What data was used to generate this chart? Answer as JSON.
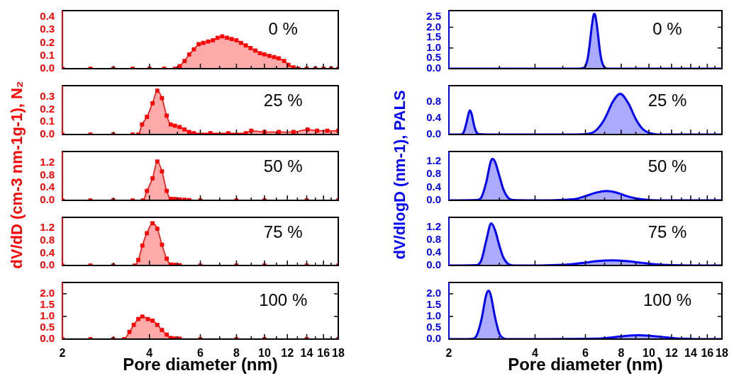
{
  "chart_data": [
    {
      "type": "area",
      "color": "#ff0000",
      "marker": "square",
      "log": "x",
      "xlim": [
        2,
        18
      ],
      "xticks": [
        2,
        {
          "value": 3,
          "label": null
        },
        4,
        {
          "value": 5,
          "label": null
        },
        6,
        {
          "value": 7,
          "label": null
        },
        8,
        {
          "value": 9,
          "label": null
        },
        10,
        {
          "value": 11,
          "label": null
        },
        12,
        {
          "value": 13,
          "label": null
        },
        14,
        {
          "value": 15,
          "label": null
        },
        16,
        {
          "value": 17,
          "label": null
        },
        18
      ],
      "tick_labels": "y",
      "ylim": [
        0,
        0.45
      ],
      "yticks": [
        {
          "value": 0,
          "label": "0.0"
        },
        0.1,
        0.2,
        0.3,
        0.4
      ],
      "annotations": [
        "0 %"
      ],
      "x": [
        2,
        2.5,
        3,
        3.5,
        4,
        4.5,
        4.9,
        5.09,
        5.29,
        5.49,
        5.7,
        5.92,
        6.14,
        6.38,
        6.63,
        6.88,
        7.14,
        7.42,
        7.7,
        8.0,
        8.3,
        8.62,
        8.95,
        9.3,
        9.65,
        10.0,
        10.4,
        10.8,
        11.2,
        11.7,
        12.1,
        12.6,
        13.1,
        14,
        15,
        16,
        17,
        18
      ],
      "values": [
        0,
        0,
        0,
        0,
        0,
        0,
        0,
        0.02,
        0.06,
        0.11,
        0.15,
        0.19,
        0.2,
        0.21,
        0.22,
        0.24,
        0.25,
        0.24,
        0.23,
        0.22,
        0.2,
        0.18,
        0.16,
        0.14,
        0.12,
        0.11,
        0.1,
        0.09,
        0.08,
        0.06,
        0.03,
        0.01,
        0,
        0,
        0,
        0,
        0,
        0
      ]
    },
    {
      "type": "area",
      "color": "#ff0000",
      "marker": "square",
      "log": "x",
      "xlim": [
        2,
        18
      ],
      "xticks": [
        2,
        {
          "value": 3,
          "label": null
        },
        4,
        {
          "value": 5,
          "label": null
        },
        6,
        {
          "value": 7,
          "label": null
        },
        8,
        {
          "value": 9,
          "label": null
        },
        10,
        {
          "value": 11,
          "label": null
        },
        12,
        {
          "value": 13,
          "label": null
        },
        14,
        {
          "value": 15,
          "label": null
        },
        16,
        {
          "value": 17,
          "label": null
        },
        18
      ],
      "tick_labels": "y",
      "ylim": [
        0,
        0.39
      ],
      "yticks": [
        {
          "value": 0,
          "label": "0.0"
        },
        0.1,
        0.2,
        0.3
      ],
      "annotations": [
        "25 %"
      ],
      "x": [
        2,
        2.5,
        3,
        3.5,
        3.66,
        3.77,
        3.92,
        4.1,
        4.26,
        4.42,
        4.59,
        4.74,
        4.9,
        5.09,
        5.29,
        5.49,
        5.7,
        6.5,
        7.5,
        8.62,
        9.0,
        10.0,
        11.2,
        12.6,
        14.1,
        15.2,
        16.5,
        18
      ],
      "values": [
        0,
        0,
        0,
        0,
        0,
        0.08,
        0.14,
        0.25,
        0.35,
        0.29,
        0.15,
        0.08,
        0.07,
        0.06,
        0.04,
        0.02,
        0.01,
        0.01,
        0.01,
        0.01,
        0.03,
        0.02,
        0.02,
        0.02,
        0.04,
        0.03,
        0.03,
        0.03
      ]
    },
    {
      "type": "area",
      "color": "#ff0000",
      "marker": "square",
      "log": "x",
      "xlim": [
        2,
        18
      ],
      "xticks": [
        2,
        {
          "value": 3,
          "label": null
        },
        4,
        {
          "value": 5,
          "label": null
        },
        6,
        {
          "value": 7,
          "label": null
        },
        8,
        {
          "value": 9,
          "label": null
        },
        10,
        {
          "value": 11,
          "label": null
        },
        12,
        {
          "value": 13,
          "label": null
        },
        14,
        {
          "value": 15,
          "label": null
        },
        16,
        {
          "value": 17,
          "label": null
        },
        18
      ],
      "tick_labels": "y",
      "ylim": [
        0,
        1.55
      ],
      "yticks": [
        {
          "value": 0,
          "label": "0.0"
        },
        0.4,
        0.8,
        1.2
      ],
      "annotations": [
        "50 %"
      ],
      "ylabel": "dV/dD (cm-3 nm-1g-1), N₂",
      "x": [
        2,
        2.5,
        3,
        3.5,
        3.8,
        3.92,
        4.1,
        4.26,
        4.42,
        4.59,
        4.74,
        4.9,
        5.09,
        5.29,
        5.49,
        6,
        8,
        10,
        14,
        18
      ],
      "values": [
        0,
        0,
        0,
        0,
        0,
        0.3,
        0.7,
        1.23,
        0.92,
        0.3,
        0.05,
        0.04,
        0.03,
        0.02,
        0.01,
        0,
        0,
        0,
        0,
        0
      ]
    },
    {
      "type": "area",
      "color": "#ff0000",
      "marker": "square",
      "log": "x",
      "xlim": [
        2,
        18
      ],
      "xticks": [
        2,
        {
          "value": 3,
          "label": null
        },
        4,
        {
          "value": 5,
          "label": null
        },
        6,
        {
          "value": 7,
          "label": null
        },
        8,
        {
          "value": 9,
          "label": null
        },
        10,
        {
          "value": 11,
          "label": null
        },
        12,
        {
          "value": 13,
          "label": null
        },
        14,
        {
          "value": 15,
          "label": null
        },
        16,
        {
          "value": 17,
          "label": null
        },
        18
      ],
      "tick_labels": "y",
      "ylim": [
        0,
        1.55
      ],
      "yticks": [
        {
          "value": 0,
          "label": "0.0"
        },
        0.4,
        0.8,
        1.2
      ],
      "annotations": [
        "75 %"
      ],
      "x": [
        2,
        2.5,
        3,
        3.56,
        3.66,
        3.78,
        3.92,
        4.1,
        4.26,
        4.42,
        4.59,
        4.74,
        4.9,
        5.09,
        6,
        8,
        10,
        14,
        18
      ],
      "values": [
        0,
        0,
        0,
        0,
        0.18,
        0.64,
        1.04,
        1.36,
        1.18,
        0.67,
        0.22,
        0.03,
        0.02,
        0.01,
        0,
        0,
        0,
        0,
        0
      ]
    },
    {
      "type": "area",
      "color": "#ff0000",
      "marker": "square",
      "log": "x",
      "xlim": [
        2,
        18
      ],
      "xticks": [
        2,
        {
          "value": 3,
          "label": null
        },
        4,
        {
          "value": 5,
          "label": null
        },
        6,
        {
          "value": 7,
          "label": null
        },
        8,
        {
          "value": 9,
          "label": null
        },
        10,
        {
          "value": 11,
          "label": null
        },
        12,
        {
          "value": 13,
          "label": null
        },
        14,
        {
          "value": 15,
          "label": null
        },
        16,
        {
          "value": 17,
          "label": null
        },
        18
      ],
      "ylim": [
        0,
        2.5
      ],
      "yticks": [
        {
          "value": 0,
          "label": "0.0"
        },
        0.5,
        {
          "value": 1,
          "label": "1.0"
        },
        1.5,
        {
          "value": 2,
          "label": "2.0"
        }
      ],
      "annotations": [
        "100 %"
      ],
      "xlabel": "Pore diameter (nm)",
      "x": [
        2,
        2.5,
        3,
        3.27,
        3.41,
        3.53,
        3.66,
        3.78,
        3.95,
        4.1,
        4.26,
        4.42,
        4.59,
        4.74,
        4.9,
        5.09,
        6,
        8,
        10,
        14,
        18
      ],
      "values": [
        0,
        0,
        0,
        0,
        0.32,
        0.63,
        0.89,
        1.0,
        0.89,
        0.82,
        0.63,
        0.4,
        0.2,
        0.05,
        0.03,
        0.02,
        0,
        0,
        0,
        0,
        0
      ]
    },
    {
      "type": "area",
      "color": "#0000ff",
      "marker": "none",
      "log": "x",
      "xlim": [
        2,
        18
      ],
      "xticks": [
        2,
        {
          "value": 3,
          "label": null
        },
        4,
        {
          "value": 5,
          "label": null
        },
        6,
        {
          "value": 7,
          "label": null
        },
        8,
        {
          "value": 9,
          "label": null
        },
        10,
        {
          "value": 11,
          "label": null
        },
        12,
        {
          "value": 13,
          "label": null
        },
        14,
        {
          "value": 15,
          "label": null
        },
        16,
        {
          "value": 17,
          "label": null
        },
        18
      ],
      "tick_labels": "y",
      "ylim": [
        0,
        2.8
      ],
      "yticks": [
        {
          "value": 0,
          "label": "0.0"
        },
        0.5,
        {
          "value": 1,
          "label": "1.0"
        },
        1.5,
        {
          "value": 2,
          "label": "2.0"
        },
        2.5
      ],
      "annotations": [
        "0 %"
      ],
      "x": [
        2,
        4,
        5.5,
        5.9,
        6.1,
        6.2,
        6.3,
        6.4,
        6.45,
        6.5,
        6.6,
        6.7,
        6.8,
        7.0,
        7.2,
        10,
        18
      ],
      "values": [
        0,
        0,
        0,
        0.03,
        0.45,
        1.09,
        1.93,
        2.56,
        2.65,
        2.56,
        1.96,
        1.17,
        0.53,
        0.06,
        0,
        0,
        0
      ]
    },
    {
      "type": "area",
      "color": "#0000ff",
      "marker": "none",
      "log": "x",
      "xlim": [
        2,
        18
      ],
      "xticks": [
        2,
        {
          "value": 3,
          "label": null
        },
        4,
        {
          "value": 5,
          "label": null
        },
        6,
        {
          "value": 7,
          "label": null
        },
        8,
        {
          "value": 9,
          "label": null
        },
        10,
        {
          "value": 11,
          "label": null
        },
        12,
        {
          "value": 13,
          "label": null
        },
        14,
        {
          "value": 15,
          "label": null
        },
        16,
        {
          "value": 17,
          "label": null
        },
        18
      ],
      "tick_labels": "y",
      "ylim": [
        0,
        1.2
      ],
      "yticks": [
        {
          "value": 0,
          "label": "0.0"
        },
        0.4,
        0.8
      ],
      "annotations": [
        "25 %"
      ],
      "x": [
        2,
        2.2,
        2.25,
        2.3,
        2.35,
        2.37,
        2.4,
        2.45,
        2.5,
        2.55,
        3,
        4,
        5,
        6,
        6.5,
        7,
        7.5,
        7.94,
        8.5,
        9,
        9.5,
        10,
        10.5,
        11,
        14,
        18
      ],
      "values": [
        0,
        0,
        0.05,
        0.27,
        0.55,
        0.59,
        0.51,
        0.22,
        0.05,
        0.01,
        0,
        0,
        0,
        0.01,
        0.09,
        0.38,
        0.82,
        1.0,
        0.75,
        0.38,
        0.14,
        0.04,
        0.01,
        0,
        0,
        0
      ]
    },
    {
      "type": "area",
      "color": "#0000ff",
      "marker": "none",
      "log": "x",
      "xlim": [
        2,
        18
      ],
      "xticks": [
        2,
        {
          "value": 3,
          "label": null
        },
        4,
        {
          "value": 5,
          "label": null
        },
        6,
        {
          "value": 7,
          "label": null
        },
        8,
        {
          "value": 9,
          "label": null
        },
        10,
        {
          "value": 11,
          "label": null
        },
        12,
        {
          "value": 13,
          "label": null
        },
        14,
        {
          "value": 15,
          "label": null
        },
        16,
        {
          "value": 17,
          "label": null
        },
        18
      ],
      "tick_labels": "y",
      "ylim": [
        0,
        1.5
      ],
      "yticks": [
        {
          "value": 0,
          "label": "0.0"
        },
        0.4,
        0.8,
        1.2
      ],
      "annotations": [
        "50 %"
      ],
      "ylabel": "dV/dlogD (nm-1), PALS",
      "x": [
        2,
        2.5,
        2.6,
        2.7,
        2.8,
        2.84,
        2.9,
        3.0,
        3.1,
        3.2,
        3.35,
        4,
        5.5,
        6,
        6.5,
        7.1,
        7.7,
        8.3,
        9,
        10,
        11,
        18
      ],
      "values": [
        0,
        0.01,
        0.1,
        0.55,
        1.19,
        1.27,
        1.18,
        0.76,
        0.34,
        0.11,
        0.01,
        0,
        0.04,
        0.13,
        0.23,
        0.29,
        0.24,
        0.14,
        0.06,
        0.01,
        0,
        0
      ]
    },
    {
      "type": "area",
      "color": "#0000ff",
      "marker": "none",
      "log": "x",
      "xlim": [
        2,
        18
      ],
      "xticks": [
        2,
        {
          "value": 3,
          "label": null
        },
        4,
        {
          "value": 5,
          "label": null
        },
        6,
        {
          "value": 7,
          "label": null
        },
        8,
        {
          "value": 9,
          "label": null
        },
        10,
        {
          "value": 11,
          "label": null
        },
        12,
        {
          "value": 13,
          "label": null
        },
        14,
        {
          "value": 15,
          "label": null
        },
        16,
        {
          "value": 17,
          "label": null
        },
        18
      ],
      "tick_labels": "y",
      "ylim": [
        0,
        1.5
      ],
      "yticks": [
        {
          "value": 0,
          "label": "0.0"
        },
        0.4,
        0.8,
        1.2
      ],
      "annotations": [
        "75 %"
      ],
      "x": [
        2,
        2.5,
        2.6,
        2.7,
        2.81,
        2.9,
        3.0,
        3.1,
        3.2,
        3.4,
        4,
        5,
        5.5,
        6,
        6.5,
        7.45,
        8.5,
        9.5,
        10.5,
        12,
        14,
        18
      ],
      "values": [
        0,
        0.01,
        0.18,
        0.77,
        1.31,
        1.1,
        0.63,
        0.25,
        0.07,
        0,
        0,
        0.02,
        0.05,
        0.09,
        0.13,
        0.16,
        0.13,
        0.08,
        0.04,
        0.01,
        0,
        0
      ]
    },
    {
      "type": "area",
      "color": "#0000ff",
      "marker": "none",
      "log": "x",
      "xlim": [
        2,
        18
      ],
      "xticks": [
        2,
        {
          "value": 3,
          "label": null
        },
        4,
        {
          "value": 5,
          "label": null
        },
        6,
        {
          "value": 7,
          "label": null
        },
        8,
        {
          "value": 9,
          "label": null
        },
        10,
        {
          "value": 11,
          "label": null
        },
        12,
        {
          "value": 13,
          "label": null
        },
        14,
        {
          "value": 15,
          "label": null
        },
        16,
        {
          "value": 17,
          "label": null
        },
        18
      ],
      "ylim": [
        0,
        2.5
      ],
      "yticks": [
        {
          "value": 0,
          "label": "0.0"
        },
        0.5,
        {
          "value": 1,
          "label": "1.0"
        },
        1.5,
        {
          "value": 2,
          "label": "2.0"
        }
      ],
      "annotations": [
        "100 %"
      ],
      "xlabel": "Pore diameter (nm)",
      "x": [
        2,
        2.4,
        2.5,
        2.6,
        2.7,
        2.75,
        2.8,
        2.9,
        3.0,
        3.1,
        3.2,
        4,
        6.5,
        7.5,
        8.3,
        9.22,
        10.2,
        11.2,
        12.5,
        14,
        16,
        18
      ],
      "values": [
        0,
        0.01,
        0.16,
        0.88,
        1.95,
        2.14,
        1.95,
        0.96,
        0.25,
        0.04,
        0,
        0,
        0.02,
        0.08,
        0.14,
        0.17,
        0.14,
        0.09,
        0.03,
        0.01,
        0,
        0
      ]
    }
  ]
}
